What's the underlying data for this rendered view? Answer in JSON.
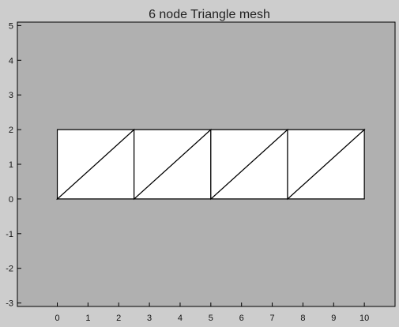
{
  "chart_data": {
    "type": "mesh",
    "title": "6 node Triangle mesh",
    "xlabel": "",
    "ylabel": "",
    "xlim": [
      -1.3,
      11.0
    ],
    "ylim": [
      -3.1,
      5.1
    ],
    "xticks": [
      0,
      1,
      2,
      3,
      4,
      5,
      6,
      7,
      8,
      9,
      10
    ],
    "yticks": [
      -3,
      -2,
      -1,
      0,
      1,
      2,
      3,
      4,
      5
    ],
    "grid": false,
    "nodes": [
      [
        0,
        0
      ],
      [
        2.5,
        0
      ],
      [
        5,
        0
      ],
      [
        7.5,
        0
      ],
      [
        10,
        0
      ],
      [
        0,
        2
      ],
      [
        2.5,
        2
      ],
      [
        5,
        2
      ],
      [
        7.5,
        2
      ],
      [
        10,
        2
      ]
    ],
    "triangles": [
      [
        0,
        1,
        6
      ],
      [
        0,
        6,
        5
      ],
      [
        1,
        2,
        7
      ],
      [
        1,
        7,
        6
      ],
      [
        2,
        3,
        8
      ],
      [
        2,
        8,
        7
      ],
      [
        3,
        4,
        9
      ],
      [
        3,
        9,
        8
      ]
    ],
    "colors": {
      "figure_background": "#cdcdcd",
      "plot_background": "#b0b0b0",
      "element_fill": "#ffffff",
      "element_edge": "#000000"
    }
  }
}
